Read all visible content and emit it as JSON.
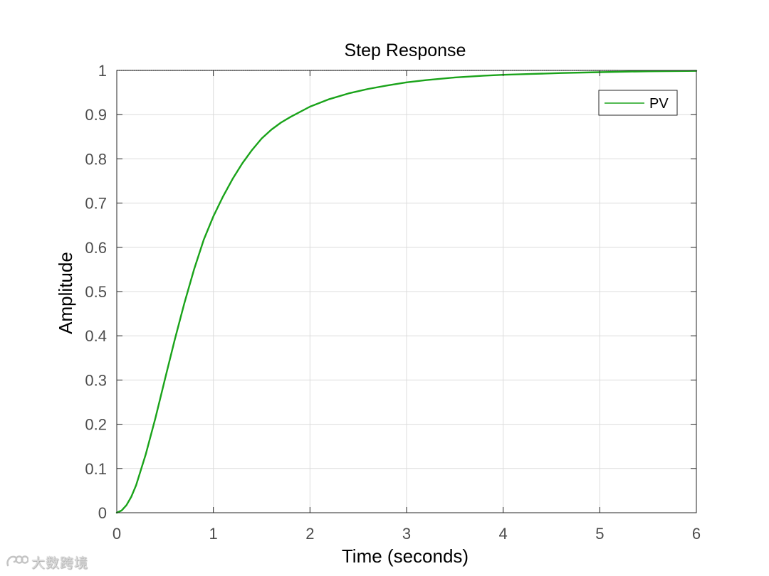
{
  "chart_data": {
    "type": "line",
    "title": "Step Response",
    "xlabel": "Time (seconds)",
    "ylabel": "Amplitude",
    "xlim": [
      0,
      6
    ],
    "ylim": [
      0,
      1
    ],
    "x_ticks": [
      "0",
      "1",
      "2",
      "3",
      "4",
      "5",
      "6"
    ],
    "y_ticks": [
      "0",
      "0.1",
      "0.2",
      "0.3",
      "0.4",
      "0.5",
      "0.6",
      "0.7",
      "0.8",
      "0.9",
      "1"
    ],
    "grid": true,
    "legend_position": "top-right",
    "reference_line": {
      "y": 1,
      "style": "dotted",
      "color": "#000000"
    },
    "series": [
      {
        "name": "PV",
        "color": "#1aa31a",
        "x": [
          0,
          0.05,
          0.1,
          0.15,
          0.2,
          0.3,
          0.4,
          0.5,
          0.6,
          0.7,
          0.8,
          0.9,
          1.0,
          1.1,
          1.2,
          1.3,
          1.4,
          1.5,
          1.6,
          1.7,
          1.8,
          2.0,
          2.2,
          2.4,
          2.6,
          2.8,
          3.0,
          3.2,
          3.5,
          3.8,
          4.0,
          4.3,
          4.6,
          5.0,
          5.5,
          6.0
        ],
        "y": [
          0,
          0.005,
          0.017,
          0.036,
          0.062,
          0.132,
          0.214,
          0.303,
          0.391,
          0.474,
          0.55,
          0.617,
          0.67,
          0.715,
          0.755,
          0.79,
          0.82,
          0.846,
          0.866,
          0.882,
          0.895,
          0.918,
          0.935,
          0.948,
          0.958,
          0.966,
          0.973,
          0.978,
          0.984,
          0.988,
          0.99,
          0.992,
          0.994,
          0.996,
          0.998,
          0.999
        ]
      }
    ]
  },
  "watermark": {
    "text": "大数跨境",
    "icon": "logo-icon"
  }
}
